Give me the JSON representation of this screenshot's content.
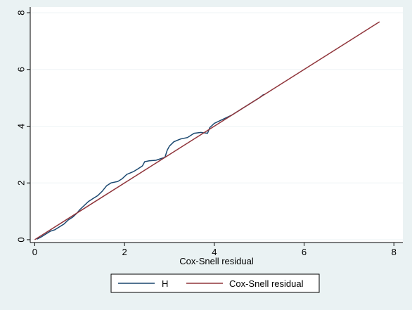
{
  "chart_data": {
    "type": "line",
    "title": "",
    "xlabel": "Cox-Snell residual",
    "ylabel": "",
    "xlim": [
      -0.1,
      8.2
    ],
    "ylim": [
      -0.1,
      8.2
    ],
    "x_ticks": [
      0,
      2,
      4,
      6,
      8
    ],
    "y_ticks": [
      0,
      2,
      4,
      6,
      8
    ],
    "grid": "horizontal",
    "legend_position": "bottom",
    "series": [
      {
        "name": "H",
        "color": "#1a476f",
        "points": [
          [
            0.05,
            0.02
          ],
          [
            0.15,
            0.1
          ],
          [
            0.25,
            0.2
          ],
          [
            0.35,
            0.3
          ],
          [
            0.45,
            0.35
          ],
          [
            0.55,
            0.45
          ],
          [
            0.65,
            0.55
          ],
          [
            0.75,
            0.7
          ],
          [
            0.85,
            0.8
          ],
          [
            0.95,
            0.95
          ],
          [
            1.0,
            1.05
          ],
          [
            1.1,
            1.2
          ],
          [
            1.2,
            1.35
          ],
          [
            1.3,
            1.45
          ],
          [
            1.4,
            1.55
          ],
          [
            1.5,
            1.7
          ],
          [
            1.6,
            1.9
          ],
          [
            1.7,
            2.0
          ],
          [
            1.85,
            2.05
          ],
          [
            1.95,
            2.15
          ],
          [
            2.05,
            2.3
          ],
          [
            2.2,
            2.4
          ],
          [
            2.3,
            2.5
          ],
          [
            2.4,
            2.6
          ],
          [
            2.45,
            2.75
          ],
          [
            2.55,
            2.78
          ],
          [
            2.7,
            2.8
          ],
          [
            2.8,
            2.85
          ],
          [
            2.9,
            2.9
          ],
          [
            2.95,
            3.15
          ],
          [
            3.0,
            3.3
          ],
          [
            3.1,
            3.45
          ],
          [
            3.25,
            3.55
          ],
          [
            3.4,
            3.6
          ],
          [
            3.55,
            3.75
          ],
          [
            3.7,
            3.78
          ],
          [
            3.85,
            3.75
          ],
          [
            3.9,
            3.95
          ],
          [
            4.0,
            4.1
          ],
          [
            4.2,
            4.25
          ],
          [
            4.4,
            4.4
          ],
          [
            4.6,
            4.6
          ],
          [
            4.8,
            4.8
          ],
          [
            5.0,
            5.0
          ],
          [
            5.1,
            5.12
          ]
        ]
      },
      {
        "name": "Cox-Snell residual",
        "color": "#90353b",
        "points": [
          [
            0.0,
            0.0
          ],
          [
            7.68,
            7.68
          ]
        ]
      }
    ]
  }
}
